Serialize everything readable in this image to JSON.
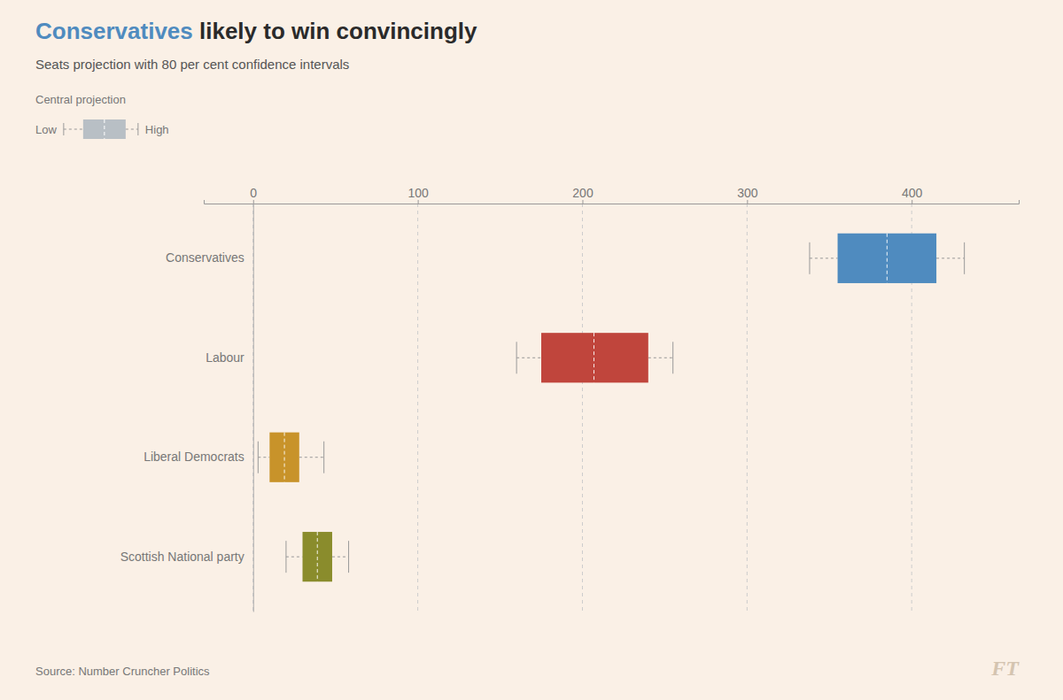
{
  "chart_data": {
    "type": "box",
    "orientation": "horizontal",
    "title": [
      "Conservatives",
      " likely to win convincingly"
    ],
    "subtitle": "Seats projection with 80 per cent confidence intervals",
    "annotations": [
      "Central projection",
      "Low",
      "High",
      "Source: Number Cruncher Politics",
      "FT"
    ],
    "categories": [
      "Conservatives",
      "Labour",
      "Liberal Democrats",
      "Scottish National party"
    ],
    "colors": [
      "#4f8bbf",
      "#c0453c",
      "#c8932a",
      "#8a8c2c"
    ],
    "values": [
      385,
      207,
      19,
      39
    ],
    "box_low": [
      355,
      175,
      10,
      30
    ],
    "box_high": [
      415,
      240,
      28,
      48
    ],
    "whisker_low": [
      338,
      160,
      3,
      20
    ],
    "whisker_high": [
      432,
      255,
      43,
      58
    ],
    "xlim": [
      -30,
      465
    ],
    "xticks": [
      0,
      100,
      200,
      300,
      400
    ],
    "grid": true
  }
}
